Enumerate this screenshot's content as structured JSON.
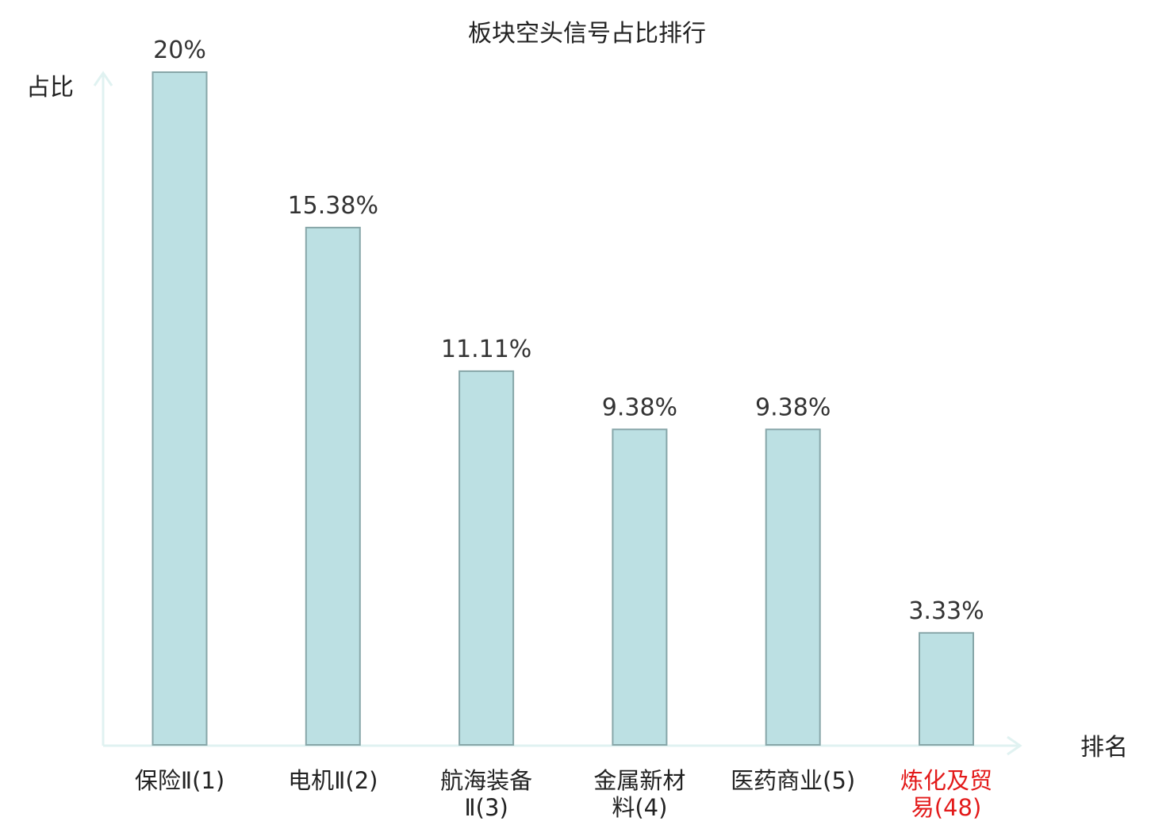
{
  "chart_data": {
    "type": "bar",
    "title": "板块空头信号占比排行",
    "ylabel": "占比",
    "xlabel": "排名",
    "categories": [
      "保险Ⅱ(1)",
      "电机Ⅱ(2)",
      "航海装备Ⅱ(3)",
      "金属新材料(4)",
      "医药商业(5)",
      "炼化及贸易(48)"
    ],
    "category_lines": [
      [
        "保险Ⅱ(1)"
      ],
      [
        "电机Ⅱ(2)"
      ],
      [
        "航海装备",
        "Ⅱ(3)"
      ],
      [
        "金属新材",
        "料(4)"
      ],
      [
        "医药商业(5)"
      ],
      [
        "炼化及贸",
        "易(48)"
      ]
    ],
    "values": [
      20,
      15.38,
      11.11,
      9.38,
      9.38,
      3.33
    ],
    "value_labels": [
      "20%",
      "15.38%",
      "11.11%",
      "9.38%",
      "9.38%",
      "3.33%"
    ],
    "highlight_index": 5,
    "ylim": [
      0,
      20
    ],
    "grid": false,
    "legend": "none"
  },
  "colors": {
    "bar_fill": "#bce0e3",
    "bar_stroke": "#87a6a8",
    "axis": "#e0f2f1",
    "highlight_text": "#e31a1a",
    "text": "#222222"
  }
}
